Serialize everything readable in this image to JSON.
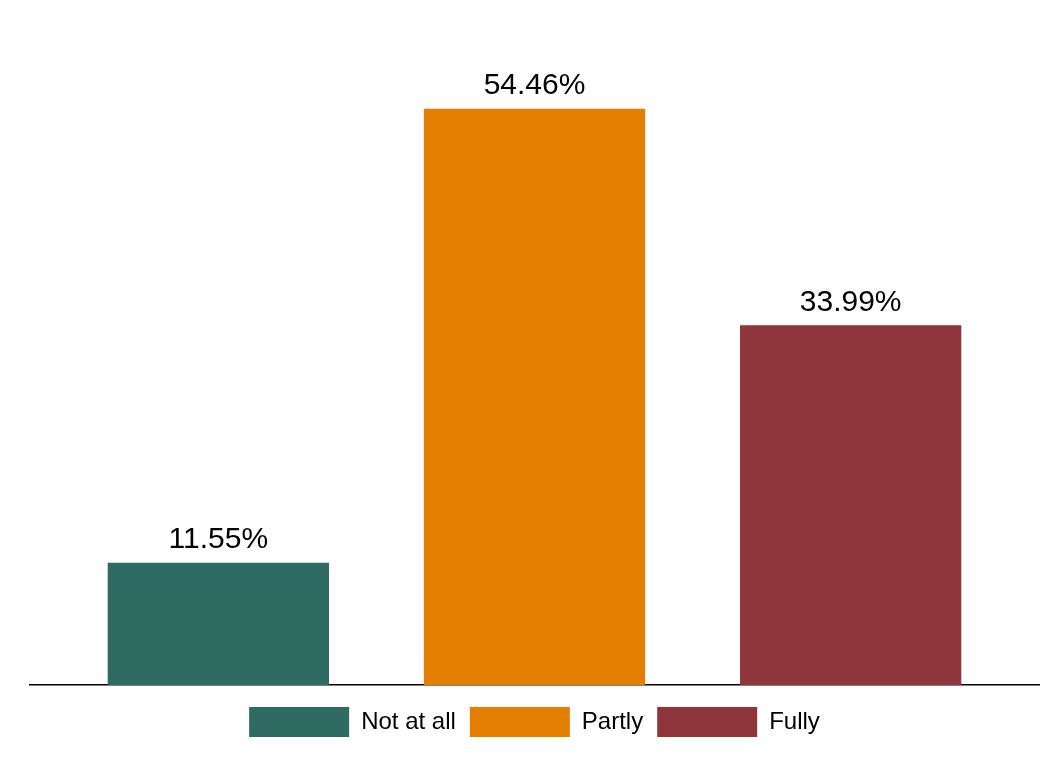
{
  "chart_data": {
    "type": "bar",
    "categories": [
      null
    ],
    "series": [
      {
        "name": "Not at all",
        "color": "#2f6b63",
        "values": [
          11.55
        ],
        "value_labels": [
          "11.55%"
        ]
      },
      {
        "name": "Partly",
        "color": "#e37e00",
        "values": [
          54.46
        ],
        "value_labels": [
          "54.46%"
        ]
      },
      {
        "name": "Fully",
        "color": "#8f353c",
        "values": [
          33.99
        ],
        "value_labels": [
          "33.99%"
        ]
      }
    ],
    "legend": "bottom",
    "tick_labels": false
  }
}
